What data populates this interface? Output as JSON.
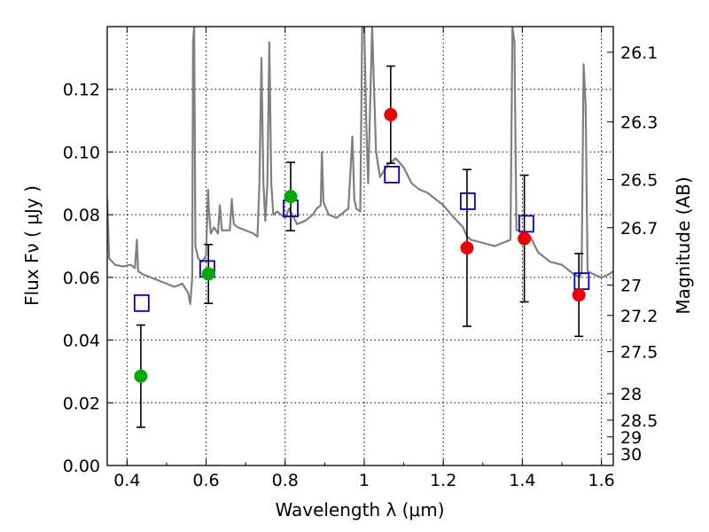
{
  "chart_data": {
    "type": "scatter",
    "x_axis": {
      "label": "Wavelength  λ (μm)",
      "range": [
        0.35,
        1.63
      ],
      "ticks": [
        0.4,
        0.6,
        0.8,
        1.0,
        1.2,
        1.4,
        1.6
      ],
      "tick_labels": [
        "0.4",
        "0.6",
        "0.8",
        "1",
        "1.2",
        "1.4",
        "1.6"
      ]
    },
    "y_axis": {
      "label": "Flux  Fν  ( μJy )",
      "range": [
        0.0,
        0.14
      ],
      "ticks": [
        0.0,
        0.02,
        0.04,
        0.06,
        0.08,
        0.1,
        0.12
      ],
      "tick_labels": [
        "0.00",
        "0.02",
        "0.04",
        "0.06",
        "0.08",
        "0.10",
        "0.12"
      ]
    },
    "y2_axis": {
      "label": "Magnitude (AB)",
      "ticks": [
        26.1,
        26.3,
        26.5,
        26.7,
        27,
        27.2,
        27.5,
        28,
        28.5,
        29,
        30
      ],
      "tick_labels": [
        "26.1",
        "26.3",
        "26.5",
        "26.7",
        "27",
        "27.2",
        "27.5",
        "28",
        "28.5",
        "29",
        "30"
      ]
    },
    "grid": true,
    "colors": {
      "model_line": "#808080",
      "model_points": "#0000cc",
      "observed_green": "#00aa00",
      "observed_red": "#ee0000",
      "error_bars": "#000000"
    },
    "series": [
      {
        "kind": "model-spectrum",
        "points": [
          [
            0.35,
            0.085
          ],
          [
            0.355,
            0.066
          ],
          [
            0.37,
            0.064
          ],
          [
            0.39,
            0.0635
          ],
          [
            0.41,
            0.064
          ],
          [
            0.42,
            0.063
          ],
          [
            0.425,
            0.072
          ],
          [
            0.428,
            0.062
          ],
          [
            0.44,
            0.061
          ],
          [
            0.46,
            0.06
          ],
          [
            0.48,
            0.059
          ],
          [
            0.5,
            0.058
          ],
          [
            0.52,
            0.057
          ],
          [
            0.54,
            0.058
          ],
          [
            0.555,
            0.055
          ],
          [
            0.56,
            0.0515
          ],
          [
            0.565,
            0.06
          ],
          [
            0.567,
            0.135
          ],
          [
            0.57,
            0.14
          ],
          [
            0.573,
            0.07
          ],
          [
            0.58,
            0.066
          ],
          [
            0.59,
            0.065
          ],
          [
            0.6,
            0.067
          ],
          [
            0.605,
            0.088
          ],
          [
            0.607,
            0.082
          ],
          [
            0.612,
            0.074
          ],
          [
            0.62,
            0.076
          ],
          [
            0.63,
            0.074
          ],
          [
            0.635,
            0.083
          ],
          [
            0.64,
            0.075
          ],
          [
            0.66,
            0.075
          ],
          [
            0.665,
            0.085
          ],
          [
            0.67,
            0.077
          ],
          [
            0.68,
            0.076
          ],
          [
            0.7,
            0.075
          ],
          [
            0.72,
            0.074
          ],
          [
            0.73,
            0.073
          ],
          [
            0.735,
            0.09
          ],
          [
            0.74,
            0.13
          ],
          [
            0.745,
            0.09
          ],
          [
            0.75,
            0.078
          ],
          [
            0.755,
            0.09
          ],
          [
            0.76,
            0.135
          ],
          [
            0.765,
            0.09
          ],
          [
            0.77,
            0.08
          ],
          [
            0.78,
            0.081
          ],
          [
            0.8,
            0.079
          ],
          [
            0.81,
            0.082
          ],
          [
            0.83,
            0.077
          ],
          [
            0.85,
            0.078
          ],
          [
            0.86,
            0.079
          ],
          [
            0.87,
            0.08
          ],
          [
            0.88,
            0.082
          ],
          [
            0.89,
            0.083
          ],
          [
            0.893,
            0.1
          ],
          [
            0.897,
            0.084
          ],
          [
            0.91,
            0.08
          ],
          [
            0.93,
            0.079
          ],
          [
            0.95,
            0.081
          ],
          [
            0.96,
            0.082
          ],
          [
            0.97,
            0.105
          ],
          [
            0.975,
            0.085
          ],
          [
            0.98,
            0.082
          ],
          [
            0.99,
            0.081
          ],
          [
            0.995,
            0.14
          ],
          [
            1.0,
            0.14
          ],
          [
            1.005,
            0.11
          ],
          [
            1.01,
            0.09
          ],
          [
            1.02,
            0.14
          ],
          [
            1.03,
            0.1
          ],
          [
            1.04,
            0.092
          ],
          [
            1.06,
            0.096
          ],
          [
            1.08,
            0.098
          ],
          [
            1.1,
            0.095
          ],
          [
            1.12,
            0.09
          ],
          [
            1.14,
            0.088
          ],
          [
            1.16,
            0.087
          ],
          [
            1.18,
            0.085
          ],
          [
            1.2,
            0.083
          ],
          [
            1.22,
            0.08
          ],
          [
            1.25,
            0.076
          ],
          [
            1.26,
            0.073
          ],
          [
            1.27,
            0.072
          ],
          [
            1.3,
            0.071
          ],
          [
            1.33,
            0.07
          ],
          [
            1.36,
            0.0715
          ],
          [
            1.37,
            0.072
          ],
          [
            1.375,
            0.14
          ],
          [
            1.38,
            0.135
          ],
          [
            1.385,
            0.075
          ],
          [
            1.39,
            0.075
          ],
          [
            1.42,
            0.073
          ],
          [
            1.44,
            0.068
          ],
          [
            1.47,
            0.065
          ],
          [
            1.5,
            0.064
          ],
          [
            1.53,
            0.061
          ],
          [
            1.545,
            0.06
          ],
          [
            1.55,
            0.062
          ],
          [
            1.555,
            0.128
          ],
          [
            1.56,
            0.115
          ],
          [
            1.565,
            0.062
          ],
          [
            1.58,
            0.061
          ],
          [
            1.6,
            0.06
          ],
          [
            1.62,
            0.061
          ],
          [
            1.63,
            0.062
          ]
        ]
      },
      {
        "kind": "model-photometry",
        "marker": "open-square",
        "points": [
          [
            0.437,
            0.0518
          ],
          [
            0.603,
            0.0627
          ],
          [
            0.814,
            0.082
          ],
          [
            1.07,
            0.0928
          ],
          [
            1.262,
            0.0843
          ],
          [
            1.41,
            0.0771
          ],
          [
            1.55,
            0.0588
          ]
        ]
      },
      {
        "kind": "observed-photometry",
        "marker": "filled-circle",
        "points": [
          {
            "x": 0.435,
            "y": 0.0285,
            "err": 0.0163,
            "color": "green"
          },
          {
            "x": 0.606,
            "y": 0.0611,
            "err": 0.0094,
            "color": "green"
          },
          {
            "x": 0.814,
            "y": 0.0858,
            "err": 0.0109,
            "color": "green"
          },
          {
            "x": 1.067,
            "y": 0.1119,
            "err": 0.0155,
            "color": "red"
          },
          {
            "x": 1.26,
            "y": 0.0694,
            "err": 0.025,
            "color": "red"
          },
          {
            "x": 1.405,
            "y": 0.0724,
            "err": 0.0202,
            "color": "red"
          },
          {
            "x": 1.543,
            "y": 0.0544,
            "err": 0.0132,
            "color": "red"
          }
        ]
      }
    ]
  }
}
